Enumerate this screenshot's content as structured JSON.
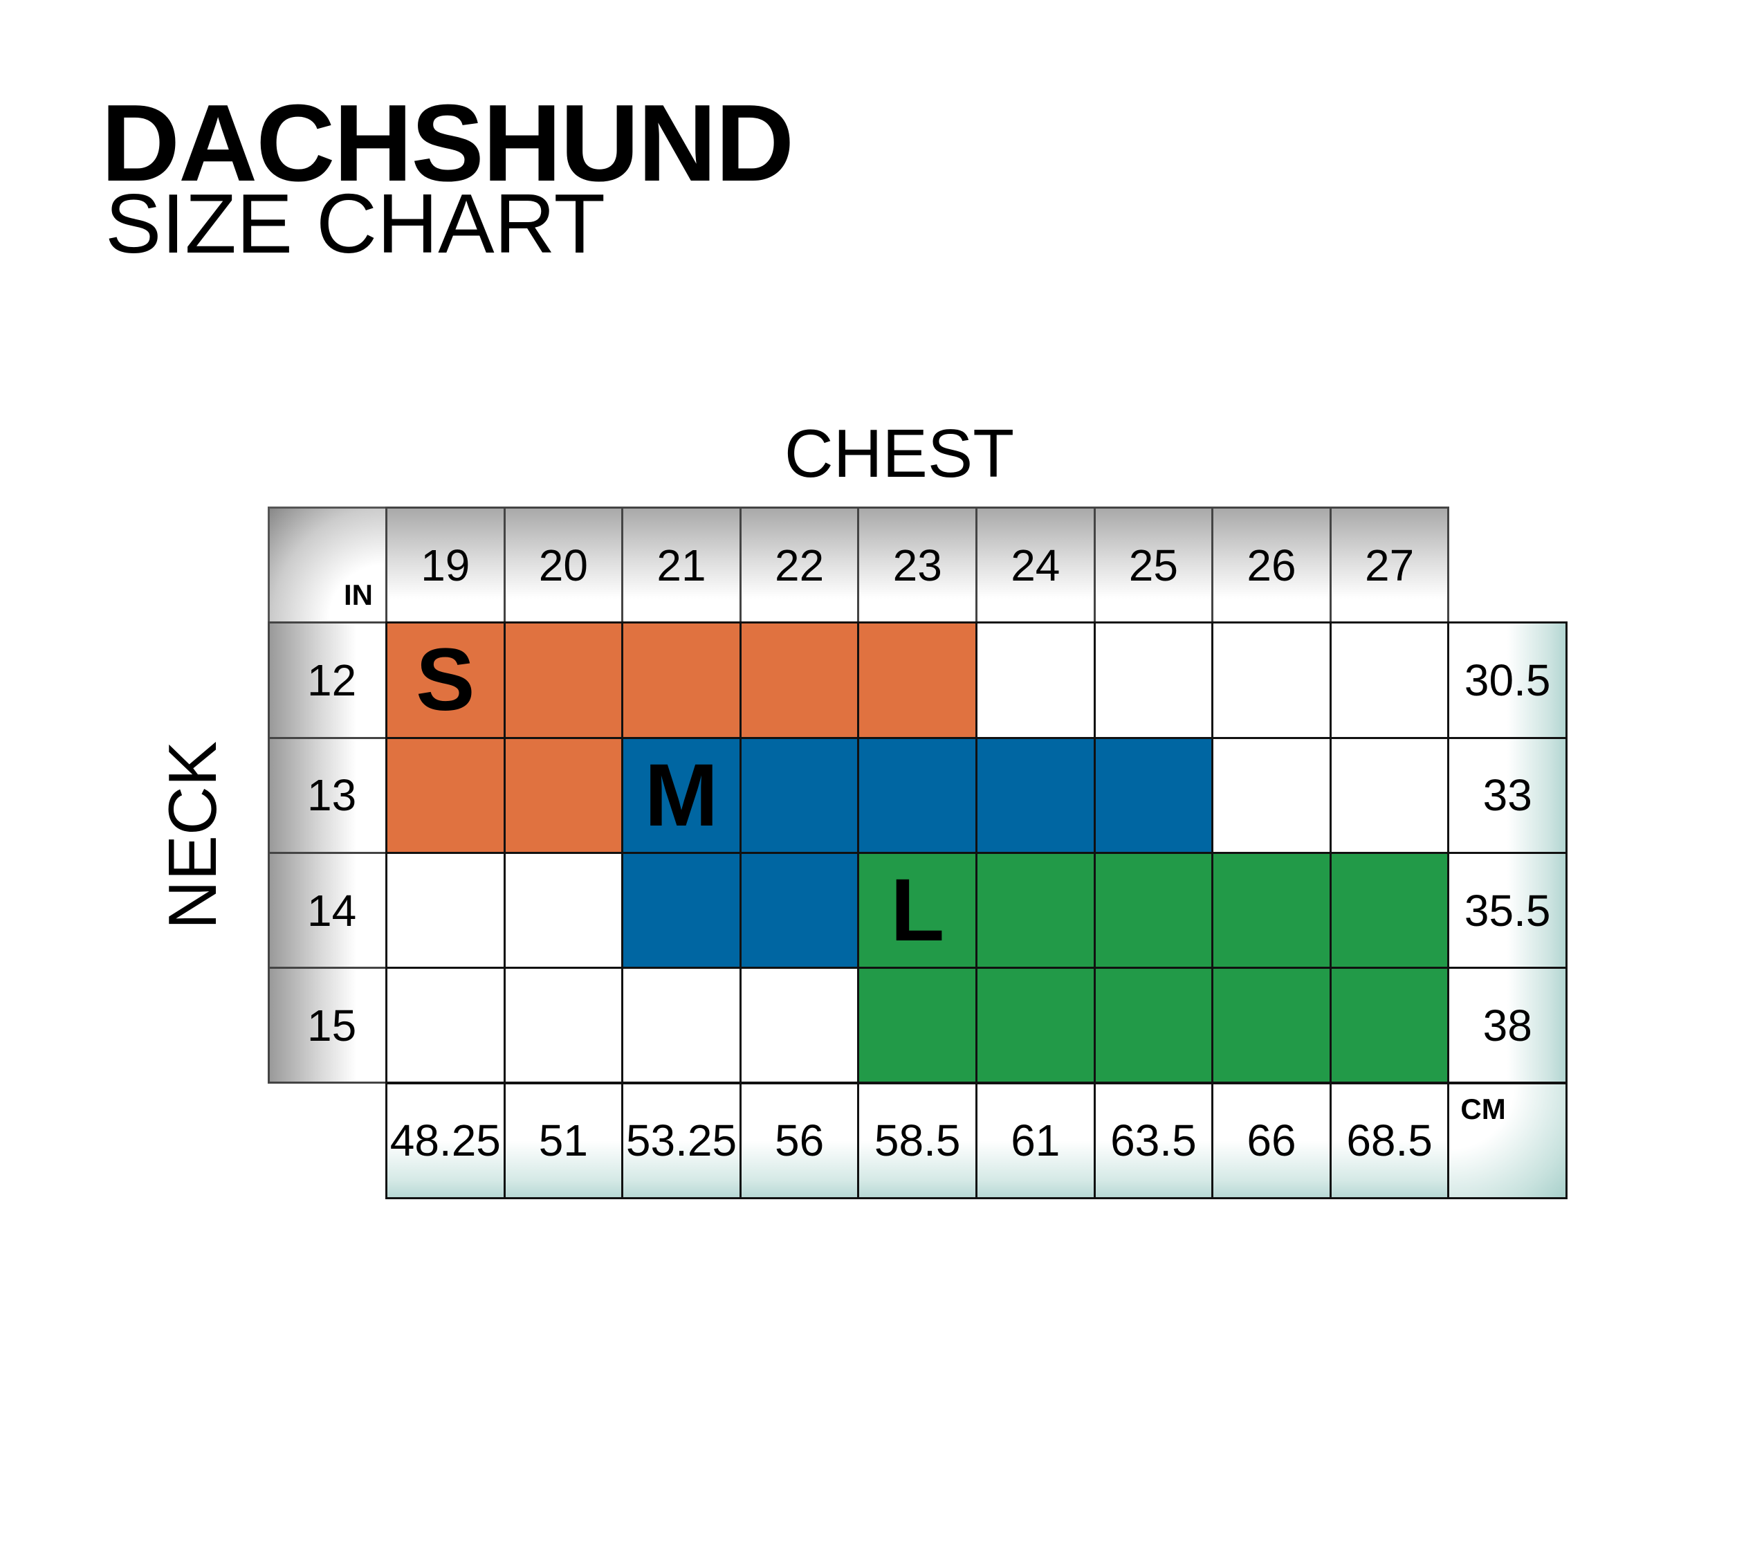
{
  "title": "DACHSHUND",
  "subtitle": "SIZE CHART",
  "chart_data": {
    "type": "table",
    "title": "DACHSHUND SIZE CHART",
    "xlabel": "CHEST",
    "ylabel": "NECK",
    "unit_inches": "IN",
    "unit_cm": "CM",
    "chest_in": [
      "19",
      "20",
      "21",
      "22",
      "23",
      "24",
      "25",
      "26",
      "27"
    ],
    "chest_cm": [
      "48.25",
      "51",
      "53.25",
      "56",
      "58.5",
      "61",
      "63.5",
      "66",
      "68.5"
    ],
    "neck_in": [
      "12",
      "13",
      "14",
      "15"
    ],
    "neck_cm": [
      "30.5",
      "33",
      "35.5",
      "38"
    ],
    "sizes": [
      {
        "label": "S",
        "color": "#E07240",
        "cells": {
          "12": [
            "19",
            "20",
            "21",
            "22",
            "23"
          ],
          "13": [
            "19",
            "20"
          ]
        }
      },
      {
        "label": "M",
        "color": "#0066A2",
        "cells": {
          "13": [
            "21",
            "22",
            "23",
            "24",
            "25"
          ],
          "14": [
            "21",
            "22"
          ]
        }
      },
      {
        "label": "L",
        "color": "#229A48",
        "cells": {
          "14": [
            "23",
            "24",
            "25",
            "26",
            "27"
          ],
          "15": [
            "23",
            "24",
            "25",
            "26",
            "27"
          ]
        }
      }
    ]
  }
}
